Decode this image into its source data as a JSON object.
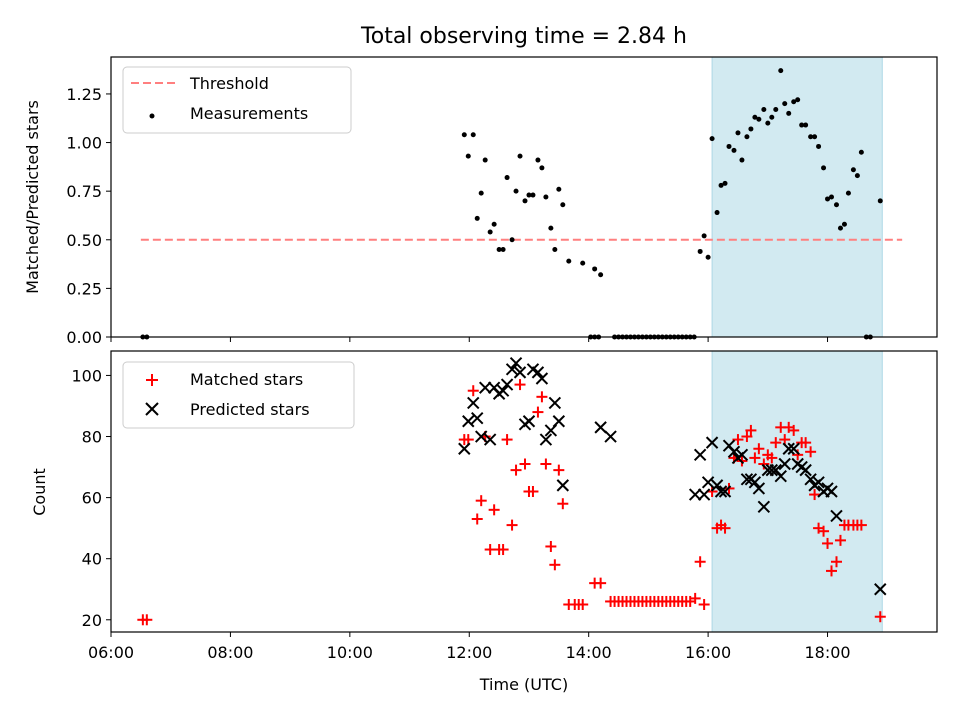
{
  "chart_data": [
    {
      "type": "scatter",
      "title": "Total observing time = 2.84 h",
      "xlabel": "",
      "ylabel": "Matched/Predicted stars",
      "xlim": [
        "06:00",
        "19:50"
      ],
      "ylim": [
        0,
        1.44
      ],
      "yticks": [
        "0.00",
        "0.25",
        "0.50",
        "0.75",
        "1.00",
        "1.25"
      ],
      "legend_position": "upper-left",
      "shaded_interval": {
        "start": "16:04",
        "end": "18:55",
        "color": "#add8e6"
      },
      "threshold": {
        "name": "Threshold",
        "value": 0.5,
        "x_start": "06:30",
        "x_end": "19:15",
        "color": "#ff7f7f",
        "style": "dashed"
      },
      "series": [
        {
          "name": "Measurements",
          "color": "#000000",
          "marker": "dot",
          "points": [
            [
              "06:32",
              0.0
            ],
            [
              "06:36",
              0.0
            ],
            [
              "11:55",
              1.04
            ],
            [
              "11:59",
              0.93
            ],
            [
              "12:04",
              1.04
            ],
            [
              "12:08",
              0.61
            ],
            [
              "12:12",
              0.74
            ],
            [
              "12:16",
              0.91
            ],
            [
              "12:21",
              0.54
            ],
            [
              "12:25",
              0.58
            ],
            [
              "12:30",
              0.45
            ],
            [
              "12:34",
              0.45
            ],
            [
              "12:38",
              0.82
            ],
            [
              "12:43",
              0.5
            ],
            [
              "12:47",
              0.75
            ],
            [
              "12:51",
              0.93
            ],
            [
              "12:56",
              0.7
            ],
            [
              "13:00",
              0.73
            ],
            [
              "13:04",
              0.73
            ],
            [
              "13:09",
              0.91
            ],
            [
              "13:13",
              0.87
            ],
            [
              "13:17",
              0.72
            ],
            [
              "13:22",
              0.56
            ],
            [
              "13:26",
              0.45
            ],
            [
              "13:30",
              0.76
            ],
            [
              "13:34",
              0.68
            ],
            [
              "13:40",
              0.39
            ],
            [
              "13:54",
              0.38
            ],
            [
              "14:06",
              0.35
            ],
            [
              "14:12",
              0.32
            ],
            [
              "14:02",
              0.0
            ],
            [
              "14:06",
              0.0
            ],
            [
              "14:10",
              0.0
            ],
            [
              "14:26",
              0.0
            ],
            [
              "14:30",
              0.0
            ],
            [
              "14:34",
              0.0
            ],
            [
              "14:38",
              0.0
            ],
            [
              "14:42",
              0.0
            ],
            [
              "14:46",
              0.0
            ],
            [
              "14:50",
              0.0
            ],
            [
              "14:54",
              0.0
            ],
            [
              "14:58",
              0.0
            ],
            [
              "15:02",
              0.0
            ],
            [
              "15:06",
              0.0
            ],
            [
              "15:10",
              0.0
            ],
            [
              "15:14",
              0.0
            ],
            [
              "15:18",
              0.0
            ],
            [
              "15:22",
              0.0
            ],
            [
              "15:26",
              0.0
            ],
            [
              "15:30",
              0.0
            ],
            [
              "15:34",
              0.0
            ],
            [
              "15:38",
              0.0
            ],
            [
              "15:42",
              0.0
            ],
            [
              "15:46",
              0.0
            ],
            [
              "15:52",
              0.44
            ],
            [
              "15:56",
              0.52
            ],
            [
              "16:00",
              0.41
            ],
            [
              "16:04",
              1.02
            ],
            [
              "16:09",
              0.64
            ],
            [
              "16:13",
              0.78
            ],
            [
              "16:17",
              0.79
            ],
            [
              "16:21",
              0.98
            ],
            [
              "16:26",
              0.96
            ],
            [
              "16:30",
              1.05
            ],
            [
              "16:34",
              0.91
            ],
            [
              "16:39",
              1.03
            ],
            [
              "16:43",
              1.07
            ],
            [
              "16:47",
              1.13
            ],
            [
              "16:51",
              1.12
            ],
            [
              "16:56",
              1.17
            ],
            [
              "17:00",
              1.1
            ],
            [
              "17:04",
              1.13
            ],
            [
              "17:08",
              1.17
            ],
            [
              "17:13",
              1.37
            ],
            [
              "17:17",
              1.2
            ],
            [
              "17:21",
              1.15
            ],
            [
              "17:26",
              1.21
            ],
            [
              "17:30",
              1.22
            ],
            [
              "17:34",
              1.09
            ],
            [
              "17:38",
              1.09
            ],
            [
              "17:43",
              1.03
            ],
            [
              "17:47",
              1.03
            ],
            [
              "17:51",
              0.98
            ],
            [
              "17:56",
              0.87
            ],
            [
              "18:00",
              0.71
            ],
            [
              "18:04",
              0.72
            ],
            [
              "18:09",
              0.68
            ],
            [
              "18:13",
              0.56
            ],
            [
              "18:17",
              0.58
            ],
            [
              "18:21",
              0.74
            ],
            [
              "18:26",
              0.86
            ],
            [
              "18:30",
              0.83
            ],
            [
              "18:34",
              0.95
            ],
            [
              "18:39",
              0.0
            ],
            [
              "18:43",
              0.0
            ],
            [
              "18:53",
              0.7
            ]
          ]
        }
      ]
    },
    {
      "type": "scatter",
      "title": "",
      "xlabel": "Time (UTC)",
      "ylabel": "Count",
      "xlim": [
        "06:00",
        "19:50"
      ],
      "ylim": [
        16,
        108
      ],
      "xticks": [
        "06:00",
        "08:00",
        "10:00",
        "12:00",
        "14:00",
        "16:00",
        "18:00"
      ],
      "yticks": [
        "20",
        "40",
        "60",
        "80",
        "100"
      ],
      "legend_position": "upper-left",
      "shaded_interval": {
        "start": "16:04",
        "end": "18:55",
        "color": "#add8e6"
      },
      "series": [
        {
          "name": "Matched stars",
          "color": "#ff0000",
          "marker": "plus",
          "points": [
            [
              "06:32",
              20
            ],
            [
              "06:36",
              20
            ],
            [
              "11:55",
              79
            ],
            [
              "11:59",
              79
            ],
            [
              "12:04",
              95
            ],
            [
              "12:08",
              53
            ],
            [
              "12:12",
              59
            ],
            [
              "12:16",
              80
            ],
            [
              "12:21",
              43
            ],
            [
              "12:25",
              56
            ],
            [
              "12:30",
              43
            ],
            [
              "12:34",
              43
            ],
            [
              "12:38",
              79
            ],
            [
              "12:43",
              51
            ],
            [
              "12:47",
              69
            ],
            [
              "12:51",
              97
            ],
            [
              "12:56",
              71
            ],
            [
              "13:00",
              62
            ],
            [
              "13:04",
              62
            ],
            [
              "13:09",
              88
            ],
            [
              "13:13",
              93
            ],
            [
              "13:17",
              71
            ],
            [
              "13:22",
              44
            ],
            [
              "13:26",
              38
            ],
            [
              "13:30",
              69
            ],
            [
              "13:34",
              58
            ],
            [
              "13:40",
              25
            ],
            [
              "13:46",
              25
            ],
            [
              "13:50",
              25
            ],
            [
              "13:54",
              25
            ],
            [
              "14:06",
              32
            ],
            [
              "14:12",
              32
            ],
            [
              "14:22",
              26
            ],
            [
              "14:26",
              26
            ],
            [
              "14:30",
              26
            ],
            [
              "14:34",
              26
            ],
            [
              "14:38",
              26
            ],
            [
              "14:42",
              26
            ],
            [
              "14:46",
              26
            ],
            [
              "14:50",
              26
            ],
            [
              "14:54",
              26
            ],
            [
              "14:58",
              26
            ],
            [
              "15:02",
              26
            ],
            [
              "15:06",
              26
            ],
            [
              "15:10",
              26
            ],
            [
              "15:14",
              26
            ],
            [
              "15:18",
              26
            ],
            [
              "15:22",
              26
            ],
            [
              "15:26",
              26
            ],
            [
              "15:30",
              26
            ],
            [
              "15:34",
              26
            ],
            [
              "15:38",
              26
            ],
            [
              "15:42",
              26
            ],
            [
              "15:47",
              27
            ],
            [
              "15:52",
              39
            ],
            [
              "15:56",
              25
            ],
            [
              "16:04",
              62
            ],
            [
              "16:09",
              50
            ],
            [
              "16:13",
              51
            ],
            [
              "16:17",
              50
            ],
            [
              "16:21",
              63
            ],
            [
              "16:26",
              73
            ],
            [
              "16:30",
              79
            ],
            [
              "16:34",
              72
            ],
            [
              "16:39",
              80
            ],
            [
              "16:43",
              82
            ],
            [
              "16:47",
              73
            ],
            [
              "16:51",
              76
            ],
            [
              "16:56",
              71
            ],
            [
              "17:00",
              74
            ],
            [
              "17:04",
              73
            ],
            [
              "17:08",
              78
            ],
            [
              "17:13",
              83
            ],
            [
              "17:17",
              79
            ],
            [
              "17:21",
              83
            ],
            [
              "17:26",
              82
            ],
            [
              "17:30",
              74
            ],
            [
              "17:34",
              78
            ],
            [
              "17:38",
              78
            ],
            [
              "17:43",
              75
            ],
            [
              "17:47",
              61
            ],
            [
              "17:51",
              50
            ],
            [
              "17:56",
              49
            ],
            [
              "18:00",
              45
            ],
            [
              "18:04",
              36
            ],
            [
              "18:09",
              39
            ],
            [
              "18:13",
              46
            ],
            [
              "18:17",
              51
            ],
            [
              "18:21",
              51
            ],
            [
              "18:26",
              51
            ],
            [
              "18:30",
              51
            ],
            [
              "18:34",
              51
            ],
            [
              "18:53",
              21
            ]
          ]
        },
        {
          "name": "Predicted stars",
          "color": "#000000",
          "marker": "x",
          "points": [
            [
              "11:55",
              76
            ],
            [
              "11:59",
              85
            ],
            [
              "12:04",
              91
            ],
            [
              "12:08",
              86
            ],
            [
              "12:12",
              80
            ],
            [
              "12:16",
              96
            ],
            [
              "12:21",
              79
            ],
            [
              "12:25",
              96
            ],
            [
              "12:30",
              94
            ],
            [
              "12:34",
              95
            ],
            [
              "12:38",
              97
            ],
            [
              "12:43",
              102
            ],
            [
              "12:47",
              104
            ],
            [
              "12:51",
              101
            ],
            [
              "12:56",
              84
            ],
            [
              "13:00",
              85
            ],
            [
              "13:04",
              102
            ],
            [
              "13:09",
              101
            ],
            [
              "13:13",
              99
            ],
            [
              "13:17",
              79
            ],
            [
              "13:22",
              82
            ],
            [
              "13:26",
              91
            ],
            [
              "13:30",
              85
            ],
            [
              "13:34",
              64
            ],
            [
              "14:12",
              83
            ],
            [
              "14:22",
              80
            ],
            [
              "15:47",
              61
            ],
            [
              "15:52",
              74
            ],
            [
              "15:56",
              61
            ],
            [
              "16:00",
              65
            ],
            [
              "16:04",
              78
            ],
            [
              "16:09",
              64
            ],
            [
              "16:13",
              62
            ],
            [
              "16:17",
              62
            ],
            [
              "16:21",
              77
            ],
            [
              "16:26",
              75
            ],
            [
              "16:30",
              73
            ],
            [
              "16:34",
              74
            ],
            [
              "16:39",
              66
            ],
            [
              "16:43",
              66
            ],
            [
              "16:47",
              65
            ],
            [
              "16:51",
              63
            ],
            [
              "16:56",
              57
            ],
            [
              "17:00",
              69
            ],
            [
              "17:04",
              69
            ],
            [
              "17:08",
              69
            ],
            [
              "17:13",
              67
            ],
            [
              "17:17",
              71
            ],
            [
              "17:21",
              76
            ],
            [
              "17:26",
              76
            ],
            [
              "17:30",
              71
            ],
            [
              "17:34",
              70
            ],
            [
              "17:38",
              69
            ],
            [
              "17:43",
              66
            ],
            [
              "17:47",
              64
            ],
            [
              "17:51",
              65
            ],
            [
              "17:56",
              62
            ],
            [
              "18:00",
              63
            ],
            [
              "18:04",
              62
            ],
            [
              "18:09",
              54
            ],
            [
              "18:53",
              30
            ]
          ]
        }
      ]
    }
  ]
}
